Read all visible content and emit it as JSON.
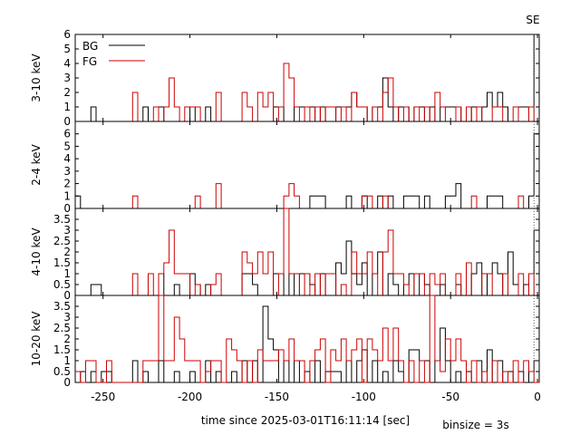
{
  "chart_data": {
    "type": "line",
    "step": true,
    "xlabel": "time since 2025-03-01T16:11:14 [sec]",
    "binsize_label": "binsize = 3s",
    "marker_label": "SE",
    "marker_x": -2,
    "xlim": [
      -266,
      1
    ],
    "xticks": [
      -250,
      -200,
      -150,
      -100,
      -50,
      0
    ],
    "binsize": 3,
    "legend": {
      "position": "top-left",
      "entries": [
        "BG",
        "FG"
      ]
    },
    "series_colors": {
      "BG": "#000000",
      "FG": "#cc0000"
    },
    "panels": [
      {
        "ylabel": "3-10 keV",
        "ylim": [
          0,
          6
        ],
        "yticks": [
          "0",
          "1",
          "2",
          "3",
          "4",
          "5",
          "6"
        ],
        "legend": true,
        "bg": {
          "start": -266,
          "values": [
            0,
            0,
            0,
            0,
            0,
            0,
            1,
            0,
            0,
            0,
            0,
            0,
            0,
            0,
            0,
            0,
            0,
            0,
            0,
            0,
            0,
            0,
            0,
            0,
            0,
            0,
            0,
            0,
            0,
            1,
            0,
            0,
            0,
            0,
            0,
            0,
            0,
            0,
            0,
            0,
            0,
            0,
            0,
            0,
            0,
            0,
            0,
            0,
            0,
            0,
            0,
            0,
            0,
            0,
            0,
            1,
            1,
            0,
            0,
            0,
            0,
            0,
            0,
            0,
            0,
            0,
            1,
            1,
            0,
            0,
            0,
            0,
            0,
            0,
            0,
            0,
            0,
            1,
            0,
            0,
            0,
            0,
            0,
            0,
            0,
            0,
            0,
            1,
            0,
            0,
            0,
            0,
            1,
            1,
            2,
            1,
            1,
            2,
            1,
            1,
            0,
            1,
            1,
            1,
            1,
            1,
            1,
            0,
            0,
            1,
            1,
            1,
            1,
            1,
            1,
            1,
            1,
            1,
            1,
            1,
            1,
            1,
            1,
            1,
            1,
            1,
            1,
            1,
            1,
            1,
            1,
            1,
            1,
            1,
            1,
            1,
            1,
            1,
            1,
            1,
            1,
            1,
            1,
            1,
            1,
            1,
            0,
            1,
            1,
            1,
            1,
            0,
            0,
            0,
            0,
            0,
            0,
            0,
            0,
            0,
            0,
            1,
            0,
            0,
            0,
            0,
            1,
            0,
            0,
            0,
            0,
            1,
            0,
            0,
            0,
            0,
            1,
            0,
            0,
            0,
            2,
            1,
            0,
            0,
            0,
            0,
            1,
            2,
            0,
            0,
            0,
            0,
            0,
            0,
            0,
            1,
            1,
            2,
            1,
            1,
            0,
            0,
            0,
            0,
            0,
            1,
            0,
            0,
            0,
            0,
            1,
            1,
            1,
            1,
            1,
            1,
            1,
            1,
            1,
            1,
            1,
            1,
            1,
            1,
            1,
            1,
            1,
            1,
            1,
            1,
            1,
            1,
            1,
            1,
            1,
            1,
            0,
            0,
            0,
            0,
            0,
            0,
            0,
            0,
            0,
            1,
            1,
            0,
            0,
            0,
            0,
            0,
            0,
            0,
            0,
            1,
            2,
            1,
            0,
            0,
            0,
            0,
            0,
            0,
            2,
            1,
            0,
            0,
            0,
            0,
            0,
            1,
            0,
            0,
            0,
            1,
            0,
            0,
            0,
            0,
            0,
            0,
            0,
            6
          ]
        },
        "fg": {
          "start": -266,
          "values": [
            0,
            0,
            0,
            0,
            0,
            0,
            0,
            0,
            0,
            0,
            0,
            0,
            0,
            0,
            0,
            0,
            0,
            0,
            0,
            0,
            0,
            0,
            0,
            0,
            0,
            0,
            0,
            0,
            0,
            0,
            0,
            0,
            0,
            0,
            0,
            0,
            0,
            0,
            0,
            0,
            0,
            0,
            0,
            0,
            0,
            0,
            0,
            0,
            0,
            0,
            0,
            0,
            0,
            0,
            0,
            0,
            0,
            0,
            0,
            0,
            0,
            0,
            0,
            0,
            0,
            0,
            0,
            0,
            0,
            0,
            0,
            0,
            0,
            0,
            0,
            0,
            0,
            0,
            0,
            0,
            0,
            0,
            0,
            0,
            0,
            0,
            0,
            0,
            0,
            0,
            0,
            0,
            0,
            0,
            0,
            0,
            0,
            0,
            0,
            0,
            0,
            0,
            0,
            0,
            0,
            0,
            0,
            0,
            0,
            0,
            0,
            0,
            0,
            0,
            0,
            0,
            0,
            0,
            0,
            0,
            0,
            0,
            0,
            0,
            0,
            0,
            0,
            0,
            0,
            0,
            0,
            0,
            0,
            0,
            0,
            0,
            0,
            0,
            0,
            0,
            0,
            0,
            0,
            0,
            0,
            0,
            0,
            0,
            0,
            0,
            0,
            0,
            0,
            0,
            0,
            0,
            0,
            0,
            0,
            0,
            0,
            0,
            0,
            0,
            0,
            0,
            0,
            0,
            0,
            0,
            0,
            0,
            0,
            0,
            0,
            0,
            0,
            0,
            0,
            0,
            0,
            0,
            0,
            0,
            0,
            0,
            0,
            0,
            0,
            0,
            0,
            0,
            0,
            0,
            0,
            0,
            0,
            0,
            0,
            0,
            0,
            0,
            0,
            0,
            0,
            0,
            0,
            0,
            0,
            0,
            0,
            0,
            0,
            0,
            0,
            0,
            0,
            0,
            0,
            0,
            0,
            0,
            0,
            0,
            0,
            0,
            0,
            0,
            0,
            0,
            0,
            0,
            0,
            0,
            0,
            0,
            0,
            0,
            0,
            0,
            0,
            0,
            0,
            0,
            0,
            0,
            0,
            0,
            0,
            0,
            0,
            0,
            0,
            0,
            0,
            0,
            0,
            0,
            0,
            0,
            0,
            0,
            0,
            0,
            0,
            0,
            0,
            0,
            0,
            0,
            0,
            0,
            0,
            0,
            0,
            0,
            0,
            0,
            0,
            0,
            0,
            0,
            0
          ]
        },
        "bins": {
          "start": -266,
          "step": 3,
          "bg": [
            0,
            0,
            1,
            0,
            0,
            0,
            0,
            0,
            0,
            0,
            1,
            0,
            0,
            1,
            0,
            0,
            0,
            0,
            0,
            0,
            0,
            0,
            0,
            0,
            0,
            0,
            0,
            0,
            0,
            0,
            0,
            0,
            0,
            1,
            0,
            0,
            1,
            1,
            1,
            1,
            0,
            0,
            1,
            0,
            0,
            0,
            0,
            1,
            1,
            0,
            0,
            1,
            2,
            1,
            1,
            2,
            1,
            1,
            1,
            1,
            0,
            1,
            2,
            0,
            0,
            0,
            1,
            1,
            0,
            0,
            1,
            0,
            0,
            1,
            1,
            1,
            0,
            0,
            0,
            0,
            0,
            1,
            1,
            0,
            0,
            1,
            2,
            1,
            1,
            0,
            0,
            0,
            1,
            2,
            0
          ],
          "fg": [
            0,
            0,
            0,
            0,
            0,
            0,
            0,
            0,
            0,
            0,
            0,
            0,
            0,
            0,
            0,
            0,
            2,
            0,
            0,
            0,
            0,
            0,
            0,
            0,
            1,
            0,
            0,
            1,
            3,
            1,
            0,
            1,
            1,
            1,
            1,
            1,
            0,
            0,
            0,
            0,
            0,
            0,
            0,
            1,
            2,
            1,
            1,
            0,
            0,
            0,
            0,
            0,
            0,
            0,
            0,
            0,
            0,
            0,
            1,
            0,
            0,
            0,
            0,
            0,
            0,
            0,
            0,
            0,
            0,
            0,
            0,
            0,
            0,
            0,
            0,
            0,
            0,
            0,
            0,
            0,
            0,
            0,
            0,
            0,
            0,
            0,
            0,
            0,
            0,
            0,
            0,
            0,
            0,
            0,
            0
          ]
        }
      },
      {
        "ylabel": "2-4 keV",
        "ylim": [
          0,
          7
        ],
        "yticks": [
          "0",
          "1",
          "2",
          "3",
          "4",
          "5",
          "6"
        ],
        "legend": false
      },
      {
        "ylabel": "4-10 keV",
        "ylim": [
          0,
          4
        ],
        "yticks": [
          "0",
          "0.5",
          "1",
          "1.5",
          "2",
          "2.5",
          "3",
          "3.5"
        ],
        "legend": false
      },
      {
        "ylabel": "10-20 keV",
        "ylim": [
          0,
          4
        ],
        "yticks": [
          "0",
          "0.5",
          "1",
          "1.5",
          "2",
          "2.5",
          "3",
          "3.5"
        ],
        "legend": false
      }
    ],
    "series": [
      {
        "name": "BG",
        "panel": 0,
        "start": -266,
        "binsize": 3,
        "values": [
          0,
          0,
          0,
          0,
          0,
          0,
          1,
          0,
          0,
          0,
          0,
          0,
          0,
          0,
          0,
          0,
          0,
          0,
          0,
          0,
          0,
          0,
          0,
          0,
          0,
          0,
          0,
          0,
          0,
          0,
          0,
          1,
          0,
          0,
          0,
          0,
          0,
          0,
          0,
          0,
          0,
          0,
          0,
          0,
          0,
          0,
          0,
          0,
          0,
          0,
          0,
          0,
          0,
          0,
          1,
          0,
          0,
          0,
          0,
          0,
          0,
          0,
          0,
          0,
          1,
          1,
          0,
          0,
          0,
          0,
          0,
          0,
          0,
          0,
          0,
          0,
          0,
          0,
          1,
          1,
          0,
          1,
          1,
          1,
          0,
          0,
          1,
          0,
          0,
          0,
          0,
          0,
          2,
          1,
          0,
          0,
          0,
          0,
          0,
          0,
          0,
          0,
          0,
          0,
          0,
          0,
          0,
          0,
          0,
          0,
          0,
          0,
          0,
          0,
          0,
          0,
          0,
          0,
          0,
          0,
          0,
          0,
          0,
          0,
          0,
          0,
          0,
          0,
          0,
          0,
          0,
          0,
          0,
          0,
          0,
          0,
          0,
          0,
          0,
          0,
          0,
          0,
          0,
          0,
          0,
          0,
          0,
          0,
          0,
          0,
          0,
          0,
          0,
          0,
          0,
          0,
          0,
          0,
          0,
          0,
          0,
          0,
          0,
          0,
          0,
          0,
          0,
          0,
          0,
          0,
          0,
          0,
          0,
          0,
          0,
          0,
          0,
          0,
          0,
          0,
          0,
          0,
          0,
          0,
          0,
          0,
          0,
          0,
          0,
          0,
          0,
          0,
          0,
          0,
          0,
          0,
          0,
          0,
          0,
          0,
          0,
          0,
          0,
          0,
          0,
          0,
          0,
          0,
          0,
          0,
          0,
          0,
          0,
          0,
          0,
          0,
          0,
          0,
          0,
          0,
          0,
          0,
          0,
          0,
          0,
          0,
          0,
          0,
          0,
          0,
          0,
          0,
          0,
          0,
          0,
          0,
          0,
          0,
          0,
          0,
          0,
          0,
          0,
          0,
          0,
          0,
          0,
          0,
          0,
          0,
          0,
          0,
          0,
          0,
          0,
          0,
          0,
          0,
          0,
          0,
          0,
          0,
          0,
          0,
          0
        ]
      }
    ]
  }
}
